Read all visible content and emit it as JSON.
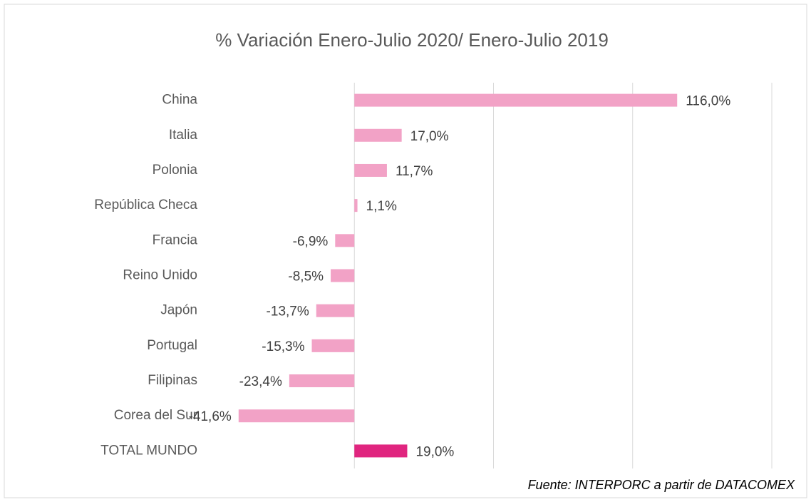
{
  "chart_data": {
    "type": "bar",
    "orientation": "horizontal",
    "title": "% Variación Enero-Julio 2020/ Enero-Julio 2019",
    "categories": [
      "China",
      "Italia",
      "Polonia",
      "República Checa",
      "Francia",
      "Reino Unido",
      "Japón",
      "Portugal",
      "Filipinas",
      "Corea del Sur",
      "TOTAL MUNDO"
    ],
    "values": [
      116.0,
      17.0,
      11.7,
      1.1,
      -6.9,
      -8.5,
      -13.7,
      -15.3,
      -23.4,
      -41.6,
      19.0
    ],
    "value_labels": [
      "116,0%",
      "17,0%",
      "11,7%",
      "1,1%",
      "-6,9%",
      "-8,5%",
      "-13,7%",
      "-15,3%",
      "-23,4%",
      "-41,6%",
      "19,0%"
    ],
    "colors": [
      "#f2a2c6",
      "#f2a2c6",
      "#f2a2c6",
      "#f2a2c6",
      "#f2a2c6",
      "#f2a2c6",
      "#f2a2c6",
      "#f2a2c6",
      "#f2a2c6",
      "#f2a2c6",
      "#e0257f"
    ],
    "xlim": [
      -50,
      150
    ],
    "xticks": [
      0,
      50,
      100,
      150
    ],
    "grid": true,
    "source": "Fuente: INTERPORC  a partir de DATACOMEX"
  }
}
